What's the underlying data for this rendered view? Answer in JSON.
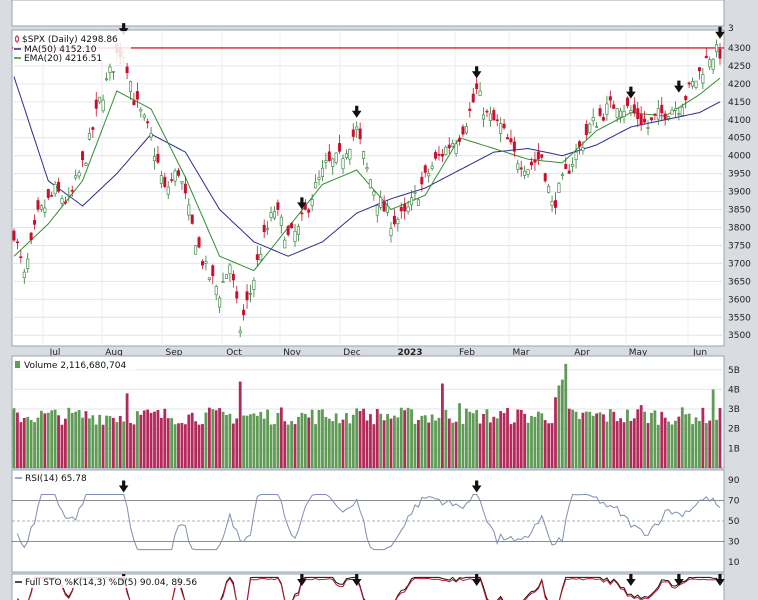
{
  "chart_data": {
    "type": "candlestick",
    "colors": {
      "up": "#2f7d32",
      "down": "#c8102e",
      "ma50": "#2b2d8f",
      "ema20": "#2f8f2f",
      "resistance": "#d3232f",
      "vol_up": "#5f9a56",
      "vol_down": "#b3295a",
      "indicator_line": "#7f8fb0",
      "sto_k": "#111111",
      "sto_d": "#c0192e"
    },
    "x_labels": [
      "Jul",
      "Aug",
      "Sep",
      "Oct",
      "Nov",
      "Dec",
      "2023",
      "Feb",
      "Mar",
      "Apr",
      "May",
      "Jun"
    ],
    "price_panel": {
      "legend": [
        {
          "label": "$SPX (Daily) 4298.86",
          "icon": "candle-icon"
        },
        {
          "label": "MA(50) 4152.10",
          "icon": "line-icon"
        },
        {
          "label": "EMA(20) 4216.51",
          "icon": "line-icon"
        }
      ],
      "y_ticks": [
        "3",
        "4300",
        "4250",
        "4200",
        "4150",
        "4100",
        "4050",
        "4000",
        "3950",
        "3900",
        "3850",
        "3800",
        "3750",
        "3700",
        "3650",
        "3600",
        "3550",
        "3500"
      ],
      "ylim": [
        3470,
        4350
      ],
      "resistance_level": 4300,
      "anchors": [
        [
          0,
          3790
        ],
        [
          3,
          3660
        ],
        [
          7,
          3830
        ],
        [
          12,
          3900
        ],
        [
          16,
          3870
        ],
        [
          21,
          4000
        ],
        [
          25,
          4150
        ],
        [
          30,
          4280
        ],
        [
          32,
          4300
        ],
        [
          35,
          4160
        ],
        [
          40,
          4050
        ],
        [
          44,
          3900
        ],
        [
          48,
          3960
        ],
        [
          52,
          3800
        ],
        [
          56,
          3680
        ],
        [
          60,
          3620
        ],
        [
          63,
          3700
        ],
        [
          66,
          3520
        ],
        [
          69,
          3620
        ],
        [
          72,
          3740
        ],
        [
          76,
          3850
        ],
        [
          80,
          3770
        ],
        [
          83,
          3790
        ],
        [
          87,
          3890
        ],
        [
          91,
          3970
        ],
        [
          95,
          3990
        ],
        [
          98,
          4040
        ],
        [
          100,
          4070
        ],
        [
          103,
          3960
        ],
        [
          106,
          3880
        ],
        [
          110,
          3820
        ],
        [
          114,
          3830
        ],
        [
          118,
          3900
        ],
        [
          122,
          3970
        ],
        [
          126,
          4020
        ],
        [
          130,
          4060
        ],
        [
          133,
          4120
        ],
        [
          135,
          4180
        ],
        [
          138,
          4110
        ],
        [
          142,
          4080
        ],
        [
          146,
          4000
        ],
        [
          150,
          3970
        ],
        [
          154,
          4000
        ],
        [
          157,
          3860
        ],
        [
          159,
          3900
        ],
        [
          162,
          3970
        ],
        [
          165,
          4020
        ],
        [
          168,
          4080
        ],
        [
          172,
          4120
        ],
        [
          176,
          4150
        ],
        [
          179,
          4130
        ],
        [
          182,
          4110
        ],
        [
          185,
          4080
        ],
        [
          188,
          4110
        ],
        [
          191,
          4130
        ],
        [
          194,
          4140
        ],
        [
          197,
          4180
        ],
        [
          200,
          4230
        ],
        [
          203,
          4280
        ],
        [
          206,
          4290
        ]
      ],
      "ma50_path": [
        [
          0,
          4220
        ],
        [
          10,
          3930
        ],
        [
          20,
          3860
        ],
        [
          30,
          3950
        ],
        [
          40,
          4060
        ],
        [
          50,
          4010
        ],
        [
          60,
          3850
        ],
        [
          70,
          3760
        ],
        [
          80,
          3720
        ],
        [
          90,
          3760
        ],
        [
          100,
          3840
        ],
        [
          110,
          3880
        ],
        [
          120,
          3910
        ],
        [
          130,
          3960
        ],
        [
          140,
          4010
        ],
        [
          150,
          4020
        ],
        [
          160,
          4000
        ],
        [
          170,
          4030
        ],
        [
          180,
          4080
        ],
        [
          190,
          4100
        ],
        [
          200,
          4120
        ],
        [
          206,
          4150
        ]
      ],
      "ema20_path": [
        [
          0,
          3720
        ],
        [
          10,
          3810
        ],
        [
          20,
          3930
        ],
        [
          30,
          4180
        ],
        [
          40,
          4130
        ],
        [
          50,
          3940
        ],
        [
          60,
          3720
        ],
        [
          70,
          3680
        ],
        [
          80,
          3800
        ],
        [
          90,
          3920
        ],
        [
          100,
          3960
        ],
        [
          110,
          3850
        ],
        [
          120,
          3890
        ],
        [
          130,
          4050
        ],
        [
          140,
          4020
        ],
        [
          150,
          3990
        ],
        [
          160,
          3980
        ],
        [
          170,
          4070
        ],
        [
          180,
          4120
        ],
        [
          190,
          4110
        ],
        [
          200,
          4170
        ],
        [
          206,
          4216
        ]
      ],
      "arrows_at": [
        32,
        84,
        100,
        135,
        180,
        194,
        206
      ]
    },
    "volume_panel": {
      "label": "Volume 2,116,680,704",
      "y_ticks": [
        "5B",
        "4B",
        "3B",
        "2B",
        "1B"
      ],
      "ylim": [
        0,
        5.7
      ]
    },
    "rsi_panel": {
      "label": "RSI(14) 65.78",
      "y_ticks": [
        "90",
        "70",
        "50",
        "30",
        "10"
      ],
      "ylim": [
        0,
        100
      ],
      "levels": [
        70,
        50,
        30
      ],
      "arrows_at": [
        32,
        135
      ]
    },
    "sto_panel": {
      "label": "Full STO %K(14,3) %D(5) 90.04, 89.56",
      "arrows_at": [
        32,
        84,
        100,
        135,
        180,
        194,
        206
      ]
    },
    "n_bars": 207
  }
}
